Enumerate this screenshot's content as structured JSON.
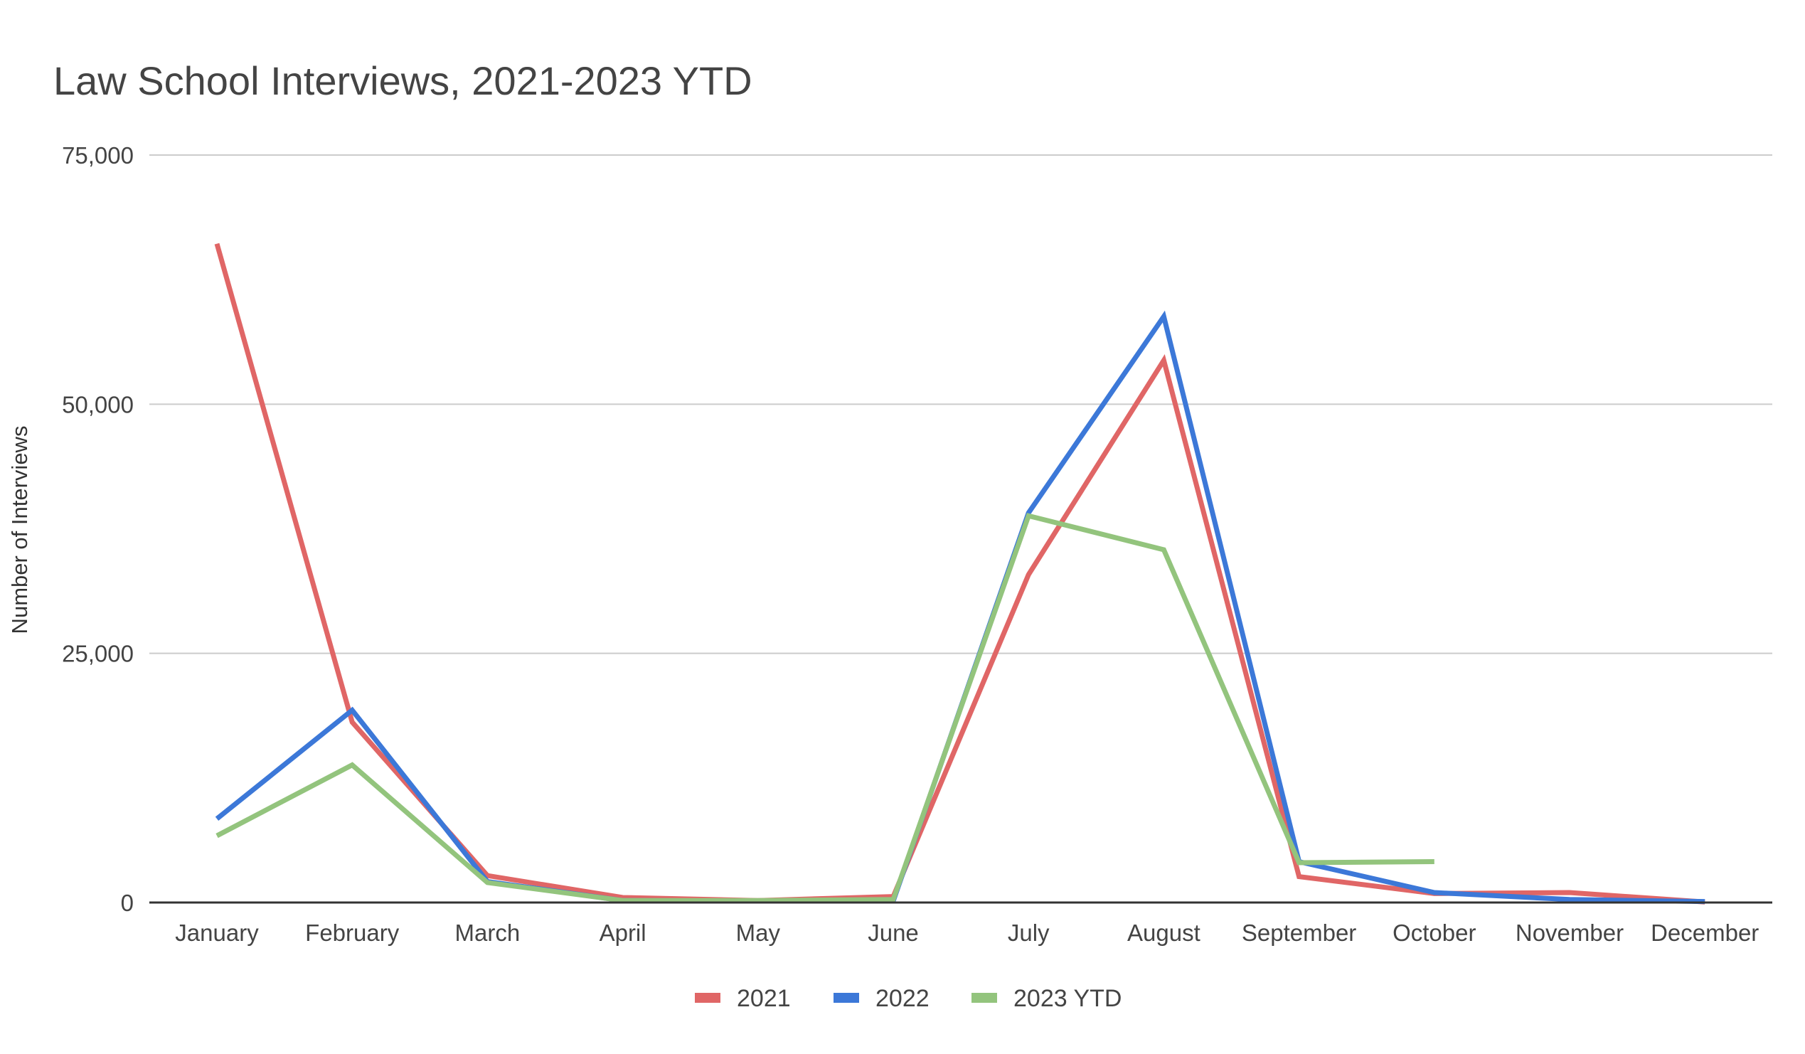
{
  "chart_data": {
    "type": "line",
    "title": "Law School Interviews, 2021-2023 YTD",
    "xlabel": "",
    "ylabel": "Number of Interviews",
    "ylim": [
      0,
      75000
    ],
    "yticks": [
      0,
      25000,
      50000,
      75000
    ],
    "ytick_labels": [
      "0",
      "25,000",
      "50,000",
      "75,000"
    ],
    "grid": true,
    "legend_position": "bottom",
    "categories": [
      "January",
      "February",
      "March",
      "April",
      "May",
      "June",
      "July",
      "August",
      "September",
      "October",
      "November",
      "December"
    ],
    "series": [
      {
        "name": "2021",
        "color": "#e06666",
        "values": [
          66100,
          18100,
          2700,
          500,
          200,
          600,
          32900,
          54400,
          2600,
          900,
          1000,
          50
        ]
      },
      {
        "name": "2022",
        "color": "#3c78d8",
        "values": [
          8400,
          19300,
          2100,
          200,
          150,
          150,
          39100,
          58800,
          4100,
          1000,
          300,
          100
        ]
      },
      {
        "name": "2023 YTD",
        "color": "#93c47d",
        "values": [
          6700,
          13800,
          2000,
          200,
          200,
          300,
          38800,
          35400,
          4000,
          4100,
          null,
          null
        ]
      }
    ]
  }
}
